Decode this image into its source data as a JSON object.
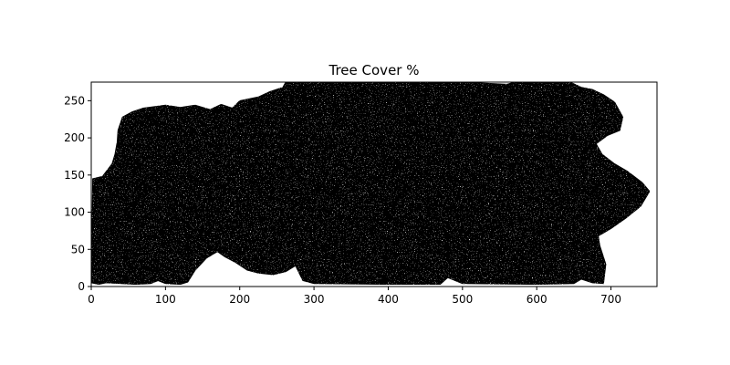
{
  "chart_data": {
    "type": "heatmap",
    "title": "Tree Cover %",
    "xlabel": "",
    "ylabel": "",
    "xlim": [
      0,
      762
    ],
    "ylim": [
      0,
      275
    ],
    "origin": "lower",
    "colormap": "binary",
    "xticks": [
      0,
      100,
      200,
      300,
      400,
      500,
      600,
      700
    ],
    "yticks": [
      0,
      50,
      100,
      150,
      200,
      250
    ],
    "grid": false,
    "legend": "none",
    "colors": {
      "covered": "#000000",
      "uncovered": "#ffffff"
    },
    "covered_region_outline": [
      [
        0,
        5
      ],
      [
        10,
        3
      ],
      [
        20,
        5
      ],
      [
        40,
        4
      ],
      [
        60,
        3
      ],
      [
        80,
        4
      ],
      [
        90,
        8
      ],
      [
        100,
        4
      ],
      [
        120,
        3
      ],
      [
        130,
        6
      ],
      [
        140,
        22
      ],
      [
        155,
        38
      ],
      [
        170,
        47
      ],
      [
        180,
        40
      ],
      [
        195,
        32
      ],
      [
        210,
        22
      ],
      [
        225,
        18
      ],
      [
        245,
        16
      ],
      [
        262,
        20
      ],
      [
        275,
        28
      ],
      [
        285,
        8
      ],
      [
        300,
        4
      ],
      [
        400,
        3
      ],
      [
        470,
        3
      ],
      [
        480,
        12
      ],
      [
        500,
        4
      ],
      [
        600,
        3
      ],
      [
        650,
        4
      ],
      [
        660,
        10
      ],
      [
        675,
        5
      ],
      [
        690,
        4
      ],
      [
        693,
        30
      ],
      [
        685,
        55
      ],
      [
        683,
        68
      ],
      [
        700,
        78
      ],
      [
        720,
        92
      ],
      [
        740,
        108
      ],
      [
        752,
        128
      ],
      [
        742,
        140
      ],
      [
        722,
        155
      ],
      [
        705,
        165
      ],
      [
        688,
        178
      ],
      [
        680,
        192
      ],
      [
        695,
        203
      ],
      [
        712,
        210
      ],
      [
        716,
        228
      ],
      [
        705,
        248
      ],
      [
        690,
        258
      ],
      [
        675,
        265
      ],
      [
        660,
        268
      ],
      [
        645,
        275
      ],
      [
        570,
        275
      ],
      [
        560,
        272
      ],
      [
        500,
        275
      ],
      [
        262,
        275
      ],
      [
        258,
        268
      ],
      [
        240,
        262
      ],
      [
        225,
        255
      ],
      [
        200,
        250
      ],
      [
        190,
        240
      ],
      [
        175,
        245
      ],
      [
        160,
        238
      ],
      [
        140,
        244
      ],
      [
        120,
        241
      ],
      [
        100,
        244
      ],
      [
        85,
        242
      ],
      [
        70,
        240
      ],
      [
        55,
        235
      ],
      [
        42,
        228
      ],
      [
        36,
        210
      ],
      [
        35,
        195
      ],
      [
        32,
        178
      ],
      [
        28,
        165
      ],
      [
        15,
        148
      ],
      [
        2,
        145
      ]
    ]
  }
}
